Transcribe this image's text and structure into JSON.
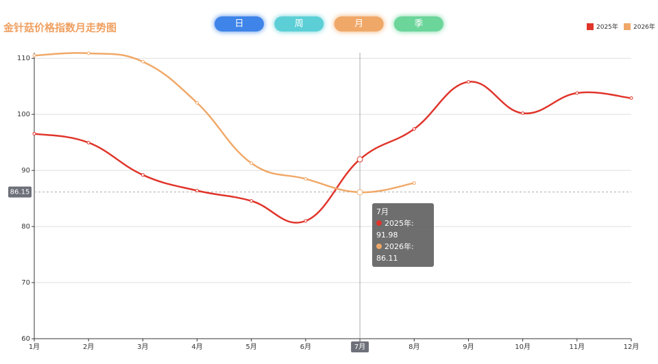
{
  "chart_data": {
    "type": "line",
    "title": "金针菇价格指数月走势图",
    "buttons": [
      {
        "label": "日",
        "color": "#3f84e8"
      },
      {
        "label": "周",
        "color": "#5ccfd6"
      },
      {
        "label": "月",
        "color": "#f0a868"
      },
      {
        "label": "季",
        "color": "#6bd59a"
      }
    ],
    "categories": [
      "1月",
      "2月",
      "3月",
      "4月",
      "5月",
      "6月",
      "7月",
      "8月",
      "9月",
      "10月",
      "11月",
      "12月"
    ],
    "series": [
      {
        "name": "2025年",
        "color": "#e0342a",
        "values": [
          96.55,
          94.96,
          89.2,
          86.4,
          84.57,
          81.0,
          91.98,
          97.4,
          105.8,
          100.2,
          103.8,
          102.9
        ]
      },
      {
        "name": "2026年",
        "color": "#f0a868",
        "values": [
          110.5,
          110.9,
          109.4,
          102.05,
          91.3,
          88.5,
          86.11,
          87.75,
          null,
          null,
          null,
          null
        ]
      }
    ],
    "ylim": [
      60,
      111
    ],
    "yticks": [
      60,
      70,
      80,
      90,
      100,
      110
    ],
    "grid": true,
    "legend": "top-right",
    "axis_pointer": {
      "x": "7月",
      "y": 86.15
    }
  }
}
